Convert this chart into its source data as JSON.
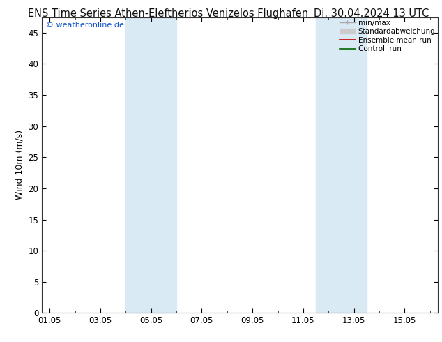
{
  "title": "ENS Time Series Athen-Eleftherios Venizelos Flughafen",
  "date_str": "Di. 30.04.2024 13 UTC",
  "ylabel": "Wind 10m (m/s)",
  "watermark": "© weatheronline.de",
  "ylim": [
    0,
    47.5
  ],
  "yticks": [
    0,
    5,
    10,
    15,
    20,
    25,
    30,
    35,
    40,
    45
  ],
  "xtick_labels": [
    "01.05",
    "03.05",
    "05.05",
    "07.05",
    "09.05",
    "11.05",
    "13.05",
    "15.05"
  ],
  "x_ticks": [
    0,
    2,
    4,
    6,
    8,
    10,
    12,
    14
  ],
  "xlim": [
    -0.3,
    15.3
  ],
  "shaded_bands": [
    {
      "xstart": 3.0,
      "xend": 5.0
    },
    {
      "xstart": 10.5,
      "xend": 12.5
    }
  ],
  "shaded_color": "#daeaf5",
  "background_color": "#ffffff",
  "title_fontsize": 10.5,
  "axis_fontsize": 9,
  "tick_fontsize": 8.5
}
